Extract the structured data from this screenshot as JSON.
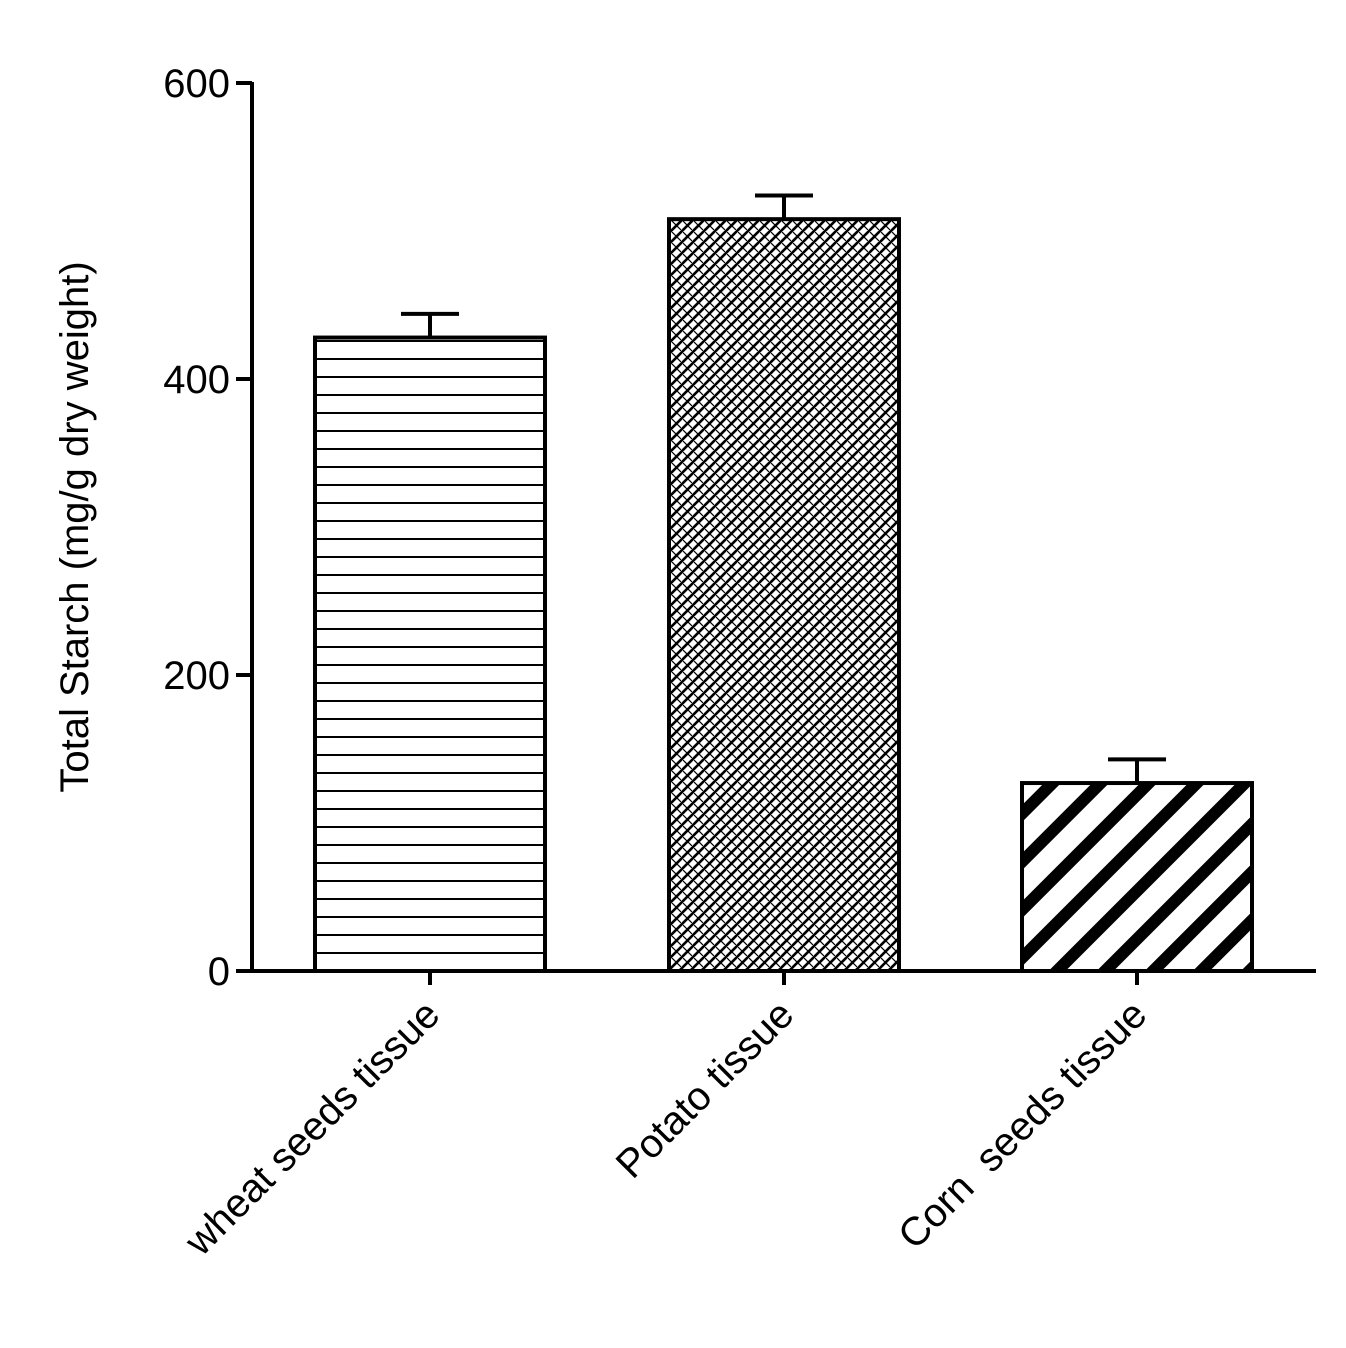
{
  "chart_data": {
    "type": "bar",
    "title": "",
    "xlabel": "",
    "ylabel": "Total Starch (mg/g dry weight)",
    "ylim": [
      0,
      600
    ],
    "yticks": [
      0,
      200,
      400,
      600
    ],
    "grid": false,
    "legend": "none",
    "categories": [
      "wheat seeds tissue",
      "Potato tissue",
      "Corn  seeds tissue"
    ],
    "values": [
      428,
      508,
      127
    ],
    "errors": [
      16,
      16,
      16
    ],
    "patterns": [
      "horizontal-lines",
      "crosshatch",
      "diagonal-stripes"
    ],
    "colors": {
      "stroke": "#000000",
      "fill": "#ffffff"
    }
  }
}
